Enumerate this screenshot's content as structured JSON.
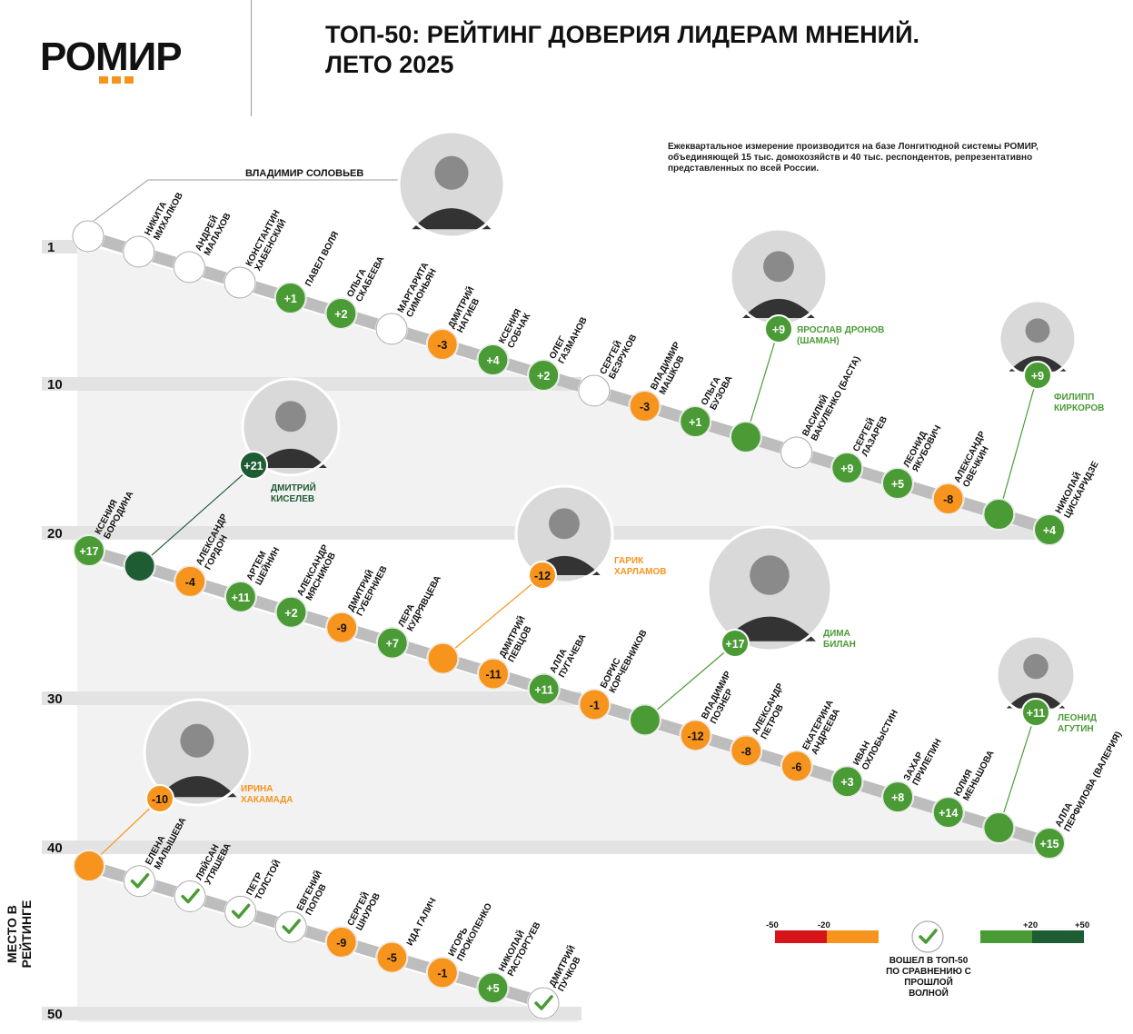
{
  "brand": "РОМИР",
  "title_line1": "ТОП-50: РЕЙТИНГ ДОВЕРИЯ ЛИДЕРАМ МНЕНИЙ.",
  "title_line2": "ЛЕТО 2025",
  "note": "Ежеквартальное измерение производится на базе Лонгитюдной системы РОМИР, объединяющей 15 тыс. домохозяйств и 40 тыс. респондентов, репрезентативно представленных по всей России.",
  "y_axis_title": "МЕСТО В РЕЙТИНГЕ",
  "legend": {
    "neg_min": "-50",
    "neg_max": "-20",
    "pos_min": "+20",
    "pos_max": "+50",
    "new_entry": "ВОШЕЛ В ТОП-50 ПО СРАВНЕНИЮ С ПРОШЛОЙ ВОЛНОЙ"
  },
  "colors": {
    "dark_red": "#d7141a",
    "orange": "#f7941d",
    "green": "#4a9b35",
    "dark_green": "#1e5c33",
    "track": "#bdbdbd",
    "band": "#eeeeee"
  },
  "chart_data": {
    "type": "table",
    "y_ticks": [
      "1",
      "10",
      "20",
      "30",
      "40",
      "50"
    ],
    "entries": [
      {
        "rank": 1,
        "name": "ВЛАДИМИР СОЛОВЬЕВ",
        "change": "",
        "status": "same",
        "photo": true
      },
      {
        "rank": 2,
        "name": "НИКИТА МИХАЛКОВ",
        "change": "",
        "status": "same"
      },
      {
        "rank": 3,
        "name": "АНДРЕЙ МАЛАХОВ",
        "change": "",
        "status": "same"
      },
      {
        "rank": 4,
        "name": "КОНСТАНТИН ХАБЕНСКИЙ",
        "change": "",
        "status": "same"
      },
      {
        "rank": 5,
        "name": "ПАВЕЛ ВОЛЯ",
        "change": "+1",
        "status": "up"
      },
      {
        "rank": 6,
        "name": "ОЛЬГА СКАБЕЕВА",
        "change": "+2",
        "status": "up"
      },
      {
        "rank": 7,
        "name": "МАРГАРИТА СИМОНЬЯН",
        "change": "",
        "status": "same"
      },
      {
        "rank": 8,
        "name": "ДМИТРИЙ НАГИЕВ",
        "change": "-3",
        "status": "down"
      },
      {
        "rank": 9,
        "name": "КСЕНИЯ СОБЧАК",
        "change": "+4",
        "status": "up"
      },
      {
        "rank": 10,
        "name": "ОЛЕГ ГАЗМАНОВ",
        "change": "+2",
        "status": "up"
      },
      {
        "rank": 11,
        "name": "СЕРГЕЙ БЕЗРУКОВ",
        "change": "",
        "status": "same"
      },
      {
        "rank": 12,
        "name": "ВЛАДИМИР МАШКОВ",
        "change": "-3",
        "status": "down"
      },
      {
        "rank": 13,
        "name": "ОЛЬГА БУЗОВА",
        "change": "+1",
        "status": "up"
      },
      {
        "rank": 14,
        "name": "ЯРОСЛАВ ДРОНОВ (ШАМАН)",
        "change": "+9",
        "status": "up",
        "photo": true
      },
      {
        "rank": 15,
        "name": "ВАСИЛИЙ ВАКУЛЕНКО (БАСТА)",
        "change": "",
        "status": "same"
      },
      {
        "rank": 16,
        "name": "СЕРГЕЙ ЛАЗАРЕВ",
        "change": "+9",
        "status": "up"
      },
      {
        "rank": 17,
        "name": "ЛЕОНИД ЯКУБОВИЧ",
        "change": "+5",
        "status": "up"
      },
      {
        "rank": 18,
        "name": "АЛЕКСАНДР ОВЕЧКИН",
        "change": "-8",
        "status": "down"
      },
      {
        "rank": 19,
        "name": "ФИЛИПП КИРКОРОВ",
        "change": "+9",
        "status": "up",
        "photo": true
      },
      {
        "rank": 20,
        "name": "НИКОЛАЙ ЦИСКАРИДЗЕ",
        "change": "+4",
        "status": "up"
      },
      {
        "rank": 21,
        "name": "КСЕНИЯ БОРОДИНА",
        "change": "+17",
        "status": "up"
      },
      {
        "rank": 22,
        "name": "ДМИТРИЙ КИСЕЛЕВ",
        "change": "+21",
        "status": "up_strong",
        "photo": true
      },
      {
        "rank": 23,
        "name": "АЛЕКСАНДР ГОРДОН",
        "change": "-4",
        "status": "down"
      },
      {
        "rank": 24,
        "name": "АРТЕМ ШЕЙНИН",
        "change": "+11",
        "status": "up"
      },
      {
        "rank": 25,
        "name": "АЛЕКСАНДР МЯСНИКОВ",
        "change": "+2",
        "status": "up"
      },
      {
        "rank": 26,
        "name": "ДМИТРИЙ ГУБЕРНИЕВ",
        "change": "-9",
        "status": "down"
      },
      {
        "rank": 27,
        "name": "ЛЕРА КУДРЯВЦЕВА",
        "change": "+7",
        "status": "up"
      },
      {
        "rank": 28,
        "name": "ГАРИК ХАРЛАМОВ",
        "change": "-12",
        "status": "down",
        "photo": true
      },
      {
        "rank": 29,
        "name": "ДМИТРИЙ ПЕВЦОВ",
        "change": "-11",
        "status": "down"
      },
      {
        "rank": 30,
        "name": "АЛЛА ПУГАЧЕВА",
        "change": "+11",
        "status": "up"
      },
      {
        "rank": 31,
        "name": "БОРИС КОРЧЕВНИКОВ",
        "change": "-1",
        "status": "down"
      },
      {
        "rank": 32,
        "name": "ДИМА БИЛАН",
        "change": "+17",
        "status": "up",
        "photo": true
      },
      {
        "rank": 33,
        "name": "ВЛАДИМИР ПОЗНЕР",
        "change": "-12",
        "status": "down"
      },
      {
        "rank": 34,
        "name": "АЛЕКСАНДР ПЕТРОВ",
        "change": "-8",
        "status": "down"
      },
      {
        "rank": 35,
        "name": "ЕКАТЕРИНА АНДРЕЕВА",
        "change": "-6",
        "status": "down"
      },
      {
        "rank": 36,
        "name": "ИВАН ОХЛОБЫСТИН",
        "change": "+3",
        "status": "up"
      },
      {
        "rank": 37,
        "name": "ЗАХАР ПРИЛЕПИН",
        "change": "+8",
        "status": "up"
      },
      {
        "rank": 38,
        "name": "ЮЛИЯ МЕНЬШОВА",
        "change": "+14",
        "status": "up"
      },
      {
        "rank": 39,
        "name": "ЛЕОНИД АГУТИН",
        "change": "+11",
        "status": "up",
        "photo": true
      },
      {
        "rank": 40,
        "name": "АЛЛА ПЕРФИЛОВА (ВАЛЕРИЯ)",
        "change": "+15",
        "status": "up"
      },
      {
        "rank": 41,
        "name": "ИРИНА ХАКАМАДА",
        "change": "-10",
        "status": "down",
        "photo": true
      },
      {
        "rank": 42,
        "name": "ЕЛЕНА МАЛЫШЕВА",
        "change": "",
        "status": "new"
      },
      {
        "rank": 43,
        "name": "ЛЯЙСАН УТЯШЕВА",
        "change": "",
        "status": "new"
      },
      {
        "rank": 44,
        "name": "ПЕТР ТОЛСТОЙ",
        "change": "",
        "status": "new"
      },
      {
        "rank": 45,
        "name": "ЕВГЕНИЙ ПОПОВ",
        "change": "",
        "status": "new"
      },
      {
        "rank": 46,
        "name": "СЕРГЕЙ ШНУРОВ",
        "change": "-9",
        "status": "down"
      },
      {
        "rank": 47,
        "name": "ИДА ГАЛИЧ",
        "change": "-5",
        "status": "down"
      },
      {
        "rank": 48,
        "name": "ИГОРЬ ПРОКОПЕНКО",
        "change": "-1",
        "status": "down"
      },
      {
        "rank": 49,
        "name": "НИКОЛАЙ РАСТОРГУЕВ",
        "change": "+5",
        "status": "up"
      },
      {
        "rank": 50,
        "name": "ДМИТРИЙ ПУЧКОВ",
        "change": "",
        "status": "new"
      }
    ]
  }
}
